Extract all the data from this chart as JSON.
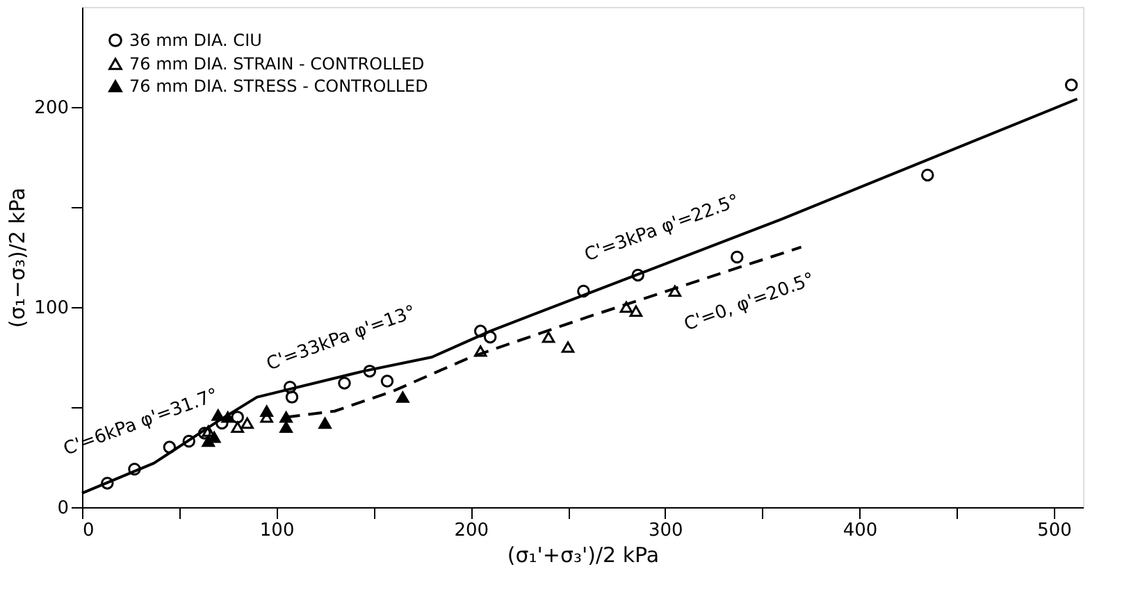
{
  "chart_data": {
    "type": "scatter",
    "xlabel": "(σ₁'+σ₃')/2 kPa",
    "ylabel": "(σ₁−σ₃)/2 kPa",
    "xlim": [
      0,
      515
    ],
    "ylim": [
      0,
      250
    ],
    "xticks": [
      0,
      {
        "value": 50,
        "label": null
      },
      100,
      {
        "value": 150,
        "label": null
      },
      200,
      {
        "value": 250,
        "label": null
      },
      300,
      {
        "value": 350,
        "label": null
      },
      400,
      {
        "value": 450,
        "label": null
      },
      500
    ],
    "yticks": [
      0,
      {
        "value": 50,
        "label": null
      },
      100,
      {
        "value": 150,
        "label": null
      },
      200
    ],
    "grid": false,
    "legend": "top left",
    "series": [
      {
        "name": "36 mm DIA. CIU",
        "color": "#000000",
        "marker": "circle",
        "x": [
          13,
          27,
          45,
          55,
          63,
          72,
          80,
          107,
          108,
          135,
          148,
          157,
          205,
          210,
          258,
          286,
          337,
          435,
          509
        ],
        "values": [
          12,
          19,
          30,
          33,
          37,
          42,
          45,
          60,
          55,
          62,
          68,
          63,
          88,
          85,
          108,
          116,
          125,
          166,
          211
        ]
      },
      {
        "name": "76 mm DIA. STRAIN - CONTROLLED",
        "color": "#000000",
        "marker": "triangle",
        "x": [
          65,
          80,
          85,
          95,
          205,
          240,
          250,
          280,
          285,
          305
        ],
        "values": [
          38,
          40,
          42,
          45,
          78,
          85,
          80,
          100,
          98,
          108
        ]
      },
      {
        "name": "76 mm DIA. STRESS - CONTROLLED",
        "color": "#000000",
        "marker": "triangle",
        "x": [
          65,
          68,
          70,
          75,
          95,
          105,
          105,
          125,
          165
        ],
        "values": [
          33,
          35,
          46,
          45,
          48,
          40,
          45,
          42,
          55
        ]
      },
      {
        "type": "line",
        "color": "#000000",
        "line_style": "solid",
        "x": [
          0,
          37,
          70,
          90,
          145,
          180,
          210,
          360,
          512
        ],
        "values": [
          7,
          22,
          43,
          55,
          68,
          75,
          88,
          144,
          204
        ]
      },
      {
        "type": "line",
        "color": "#000000",
        "line_style": "dashed",
        "x": [
          105,
          130,
          160,
          200,
          260,
          370
        ],
        "values": [
          45,
          48,
          58,
          75,
          95,
          130
        ]
      }
    ],
    "annotations": [
      "C'=6kPa φ'=31.7°",
      "C'=33kPa φ'=13°",
      "C'=3kPa φ'=22.5°",
      "C'=0, φ'=20.5°"
    ]
  }
}
